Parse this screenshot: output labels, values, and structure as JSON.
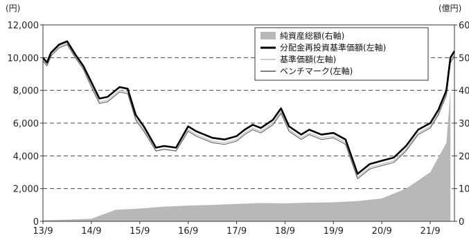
{
  "chart_data": {
    "type": "line",
    "left_unit": "(円)",
    "right_unit": "(億円)",
    "x_ticks": [
      "13/9",
      "14/9",
      "15/9",
      "16/9",
      "17/9",
      "18/9",
      "19/9",
      "20/9",
      "21/9"
    ],
    "y_left": {
      "min": 0,
      "max": 12000,
      "ticks": [
        "0",
        "2,000",
        "4,000",
        "6,000",
        "8,000",
        "10,000",
        "12,000"
      ]
    },
    "y_right": {
      "min": 0,
      "max": 60,
      "ticks": [
        "0",
        "10",
        "20",
        "30",
        "40",
        "50",
        "60"
      ]
    },
    "grid": true,
    "legend_position": "top-right",
    "series": [
      {
        "name": "純資産総額(右軸)",
        "axis": "right",
        "style": "area",
        "color": "#b8b8b8",
        "points": [
          [
            "13/9",
            0.3
          ],
          [
            "14/3",
            0.5
          ],
          [
            "14/9",
            0.8
          ],
          [
            "15/3",
            3.5
          ],
          [
            "15/9",
            3.9
          ],
          [
            "16/3",
            4.5
          ],
          [
            "16/9",
            4.8
          ],
          [
            "17/3",
            5.0
          ],
          [
            "17/9",
            5.3
          ],
          [
            "18/3",
            5.6
          ],
          [
            "18/9",
            5.5
          ],
          [
            "19/3",
            5.7
          ],
          [
            "19/9",
            5.8
          ],
          [
            "20/3",
            6.2
          ],
          [
            "20/9",
            7.0
          ],
          [
            "21/3",
            10.0
          ],
          [
            "21/9",
            15.0
          ],
          [
            "22/1",
            24.0
          ],
          [
            "22/2",
            40.0
          ]
        ]
      },
      {
        "name": "分配金再投資基準価額(左軸)",
        "axis": "left",
        "style": "line-bold",
        "color": "#000000",
        "points": [
          [
            "13/9",
            10000
          ],
          [
            "13/10",
            9700
          ],
          [
            "13/11",
            10300
          ],
          [
            "14/1",
            10800
          ],
          [
            "14/3",
            11000
          ],
          [
            "14/5",
            10200
          ],
          [
            "14/7",
            9500
          ],
          [
            "14/9",
            8500
          ],
          [
            "14/11",
            7500
          ],
          [
            "15/1",
            7600
          ],
          [
            "15/4",
            8200
          ],
          [
            "15/6",
            8100
          ],
          [
            "15/8",
            6500
          ],
          [
            "15/10",
            5800
          ],
          [
            "16/1",
            4500
          ],
          [
            "16/3",
            4600
          ],
          [
            "16/6",
            4500
          ],
          [
            "16/9",
            5800
          ],
          [
            "16/11",
            5500
          ],
          [
            "17/1",
            5300
          ],
          [
            "17/3",
            5100
          ],
          [
            "17/6",
            5000
          ],
          [
            "17/9",
            5200
          ],
          [
            "17/11",
            5600
          ],
          [
            "18/1",
            5900
          ],
          [
            "18/3",
            5700
          ],
          [
            "18/6",
            6200
          ],
          [
            "18/8",
            6900
          ],
          [
            "18/10",
            5800
          ],
          [
            "19/1",
            5300
          ],
          [
            "19/3",
            5600
          ],
          [
            "19/6",
            5300
          ],
          [
            "19/9",
            5400
          ],
          [
            "19/12",
            5000
          ],
          [
            "20/3",
            2900
          ],
          [
            "20/6",
            3500
          ],
          [
            "20/9",
            3700
          ],
          [
            "20/12",
            3900
          ],
          [
            "21/3",
            4600
          ],
          [
            "21/6",
            5600
          ],
          [
            "21/9",
            6000
          ],
          [
            "21/11",
            6800
          ],
          [
            "22/1",
            8000
          ],
          [
            "22/2",
            10000
          ],
          [
            "22/3",
            10400
          ]
        ]
      },
      {
        "name": "基準価額(左軸)",
        "axis": "left",
        "style": "line-light",
        "color": "#c4c4c4",
        "points": [
          [
            "13/9",
            9900
          ],
          [
            "13/10",
            9600
          ],
          [
            "13/11",
            10200
          ],
          [
            "14/1",
            10700
          ],
          [
            "14/3",
            10900
          ],
          [
            "14/5",
            10100
          ],
          [
            "14/7",
            9400
          ],
          [
            "14/9",
            8300
          ],
          [
            "14/11",
            7300
          ],
          [
            "15/1",
            7400
          ],
          [
            "15/4",
            8000
          ],
          [
            "15/6",
            7900
          ],
          [
            "15/8",
            6300
          ],
          [
            "15/10",
            5600
          ],
          [
            "16/1",
            4300
          ],
          [
            "16/3",
            4400
          ],
          [
            "16/6",
            4300
          ],
          [
            "16/9",
            5600
          ],
          [
            "16/11",
            5300
          ],
          [
            "17/1",
            5100
          ],
          [
            "17/3",
            4900
          ],
          [
            "17/6",
            4800
          ],
          [
            "17/9",
            5000
          ],
          [
            "17/11",
            5400
          ],
          [
            "18/1",
            5700
          ],
          [
            "18/3",
            5500
          ],
          [
            "18/6",
            6000
          ],
          [
            "18/8",
            6700
          ],
          [
            "18/10",
            5600
          ],
          [
            "19/1",
            5100
          ],
          [
            "19/3",
            5400
          ],
          [
            "19/6",
            5100
          ],
          [
            "19/9",
            5200
          ],
          [
            "19/12",
            4800
          ],
          [
            "20/3",
            2700
          ],
          [
            "20/6",
            3300
          ],
          [
            "20/9",
            3500
          ],
          [
            "20/12",
            3700
          ],
          [
            "21/3",
            4400
          ],
          [
            "21/6",
            5400
          ],
          [
            "21/9",
            5800
          ],
          [
            "21/11",
            6600
          ],
          [
            "22/1",
            7800
          ],
          [
            "22/2",
            9800
          ],
          [
            "22/3",
            10200
          ]
        ]
      },
      {
        "name": "ベンチマーク(左軸)",
        "axis": "left",
        "style": "line-thin",
        "color": "#555555",
        "points": [
          [
            "13/9",
            9800
          ],
          [
            "13/10",
            9500
          ],
          [
            "13/11",
            10100
          ],
          [
            "14/1",
            10600
          ],
          [
            "14/3",
            10800
          ],
          [
            "14/5",
            10000
          ],
          [
            "14/7",
            9300
          ],
          [
            "14/9",
            8200
          ],
          [
            "14/11",
            7200
          ],
          [
            "15/1",
            7300
          ],
          [
            "15/4",
            7900
          ],
          [
            "15/6",
            7800
          ],
          [
            "15/8",
            6200
          ],
          [
            "15/10",
            5500
          ],
          [
            "16/1",
            4300
          ],
          [
            "16/3",
            4400
          ],
          [
            "16/6",
            4300
          ],
          [
            "16/9",
            5500
          ],
          [
            "16/11",
            5200
          ],
          [
            "17/1",
            5000
          ],
          [
            "17/3",
            4800
          ],
          [
            "17/6",
            4700
          ],
          [
            "17/9",
            4900
          ],
          [
            "17/11",
            5300
          ],
          [
            "18/1",
            5600
          ],
          [
            "18/3",
            5400
          ],
          [
            "18/6",
            5900
          ],
          [
            "18/8",
            6600
          ],
          [
            "18/10",
            5500
          ],
          [
            "19/1",
            5000
          ],
          [
            "19/3",
            5300
          ],
          [
            "19/6",
            5000
          ],
          [
            "19/9",
            5100
          ],
          [
            "19/12",
            4700
          ],
          [
            "20/3",
            2600
          ],
          [
            "20/6",
            3200
          ],
          [
            "20/9",
            3400
          ],
          [
            "20/12",
            3600
          ],
          [
            "21/3",
            4300
          ],
          [
            "21/6",
            5300
          ],
          [
            "21/9",
            5700
          ],
          [
            "21/11",
            6500
          ],
          [
            "22/1",
            7700
          ],
          [
            "22/2",
            9700
          ],
          [
            "22/3",
            10100
          ]
        ]
      }
    ]
  }
}
